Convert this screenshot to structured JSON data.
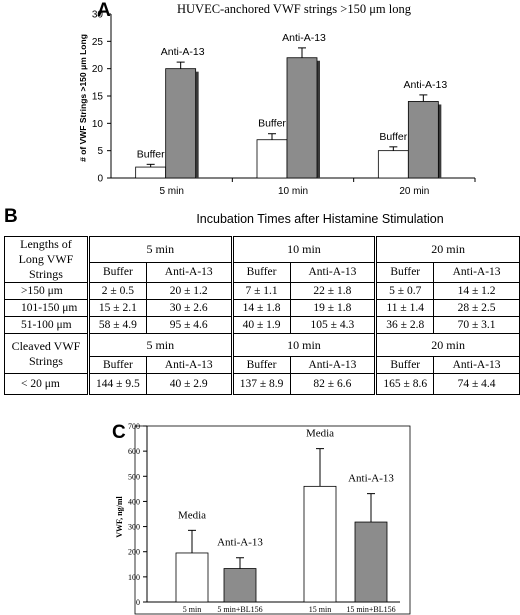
{
  "panel_a": {
    "letter": "A",
    "chart_data": {
      "type": "bar",
      "title": "HUVEC-anchored VWF strings >150 μm long",
      "ylabel": "# of VWF Strings >150 μm Long",
      "xlabel": "",
      "categories": [
        "5 min",
        "10 min",
        "20 min"
      ],
      "ylim": [
        0,
        30
      ],
      "yticks": [
        0,
        5,
        10,
        15,
        20,
        25,
        30
      ],
      "series": [
        {
          "name": "Buffer",
          "color": "#ffffff",
          "values": [
            2,
            7,
            5
          ],
          "errors": [
            0.5,
            1.1,
            0.7
          ],
          "labels": [
            "Buffer",
            "Buffer",
            "Buffer"
          ]
        },
        {
          "name": "Anti-A-13",
          "color": "#8c8c8c",
          "values": [
            20,
            22,
            14
          ],
          "errors": [
            1.2,
            1.8,
            1.2
          ],
          "labels": [
            "Anti-A-13",
            "Anti-A-13",
            "Anti-A-13"
          ]
        }
      ]
    }
  },
  "panel_b": {
    "letter": "B",
    "title": "Incubation Times after Histamine Stimulation",
    "lengths_header": [
      "Lengths of",
      "Long VWF",
      "Strings"
    ],
    "cleaved_header": [
      "Cleaved VWF",
      "Strings"
    ],
    "time_groups": [
      "5 min",
      "10 min",
      "20 min"
    ],
    "col_buffer": "Buffer",
    "col_anti": "Anti-A-13",
    "long_rows": [
      {
        "label": ">150 μm",
        "cells": [
          "2 ± 0.5",
          "20 ± 1.2",
          "7 ± 1.1",
          "22 ± 1.8",
          "5 ± 0.7",
          "14 ± 1.2"
        ]
      },
      {
        "label": "101-150 μm",
        "cells": [
          "15 ± 2.1",
          "30 ± 2.6",
          "14 ± 1.8",
          "19 ± 1.8",
          "11 ± 1.4",
          "28 ± 2.5"
        ]
      },
      {
        "label": "51-100 μm",
        "cells": [
          "58 ± 4.9",
          "95 ± 4.6",
          "40 ± 1.9",
          "105 ± 4.3",
          "36 ± 2.8",
          "70 ± 3.1"
        ]
      }
    ],
    "cleaved_rows": [
      {
        "label": "< 20 μm",
        "cells": [
          "144 ± 9.5",
          "40 ± 2.9",
          "137 ± 8.9",
          "82 ± 6.6",
          "165 ± 8.6",
          "74 ± 4.4"
        ]
      }
    ]
  },
  "panel_c": {
    "letter": "C",
    "chart_data": {
      "type": "bar",
      "title": "",
      "ylabel": "VWF, ng/ml",
      "xlabel": "",
      "categories": [
        "5 min",
        "5 min+BL156",
        "15 min",
        "15 min+BL156"
      ],
      "ylim": [
        0,
        700
      ],
      "yticks": [
        0,
        100,
        200,
        300,
        400,
        500,
        600,
        700
      ],
      "bars": [
        {
          "category": "5 min",
          "value": 195,
          "error": 90,
          "color": "#ffffff",
          "label": "Media"
        },
        {
          "category": "5 min+BL156",
          "value": 133,
          "error": 43,
          "color": "#8c8c8c",
          "label": "Anti-A-13"
        },
        {
          "category": "15 min",
          "value": 460,
          "error": 150,
          "color": "#ffffff",
          "label": "Media"
        },
        {
          "category": "15 min+BL156",
          "value": 318,
          "error": 113,
          "color": "#8c8c8c",
          "label": "Anti-A-13"
        }
      ]
    }
  }
}
